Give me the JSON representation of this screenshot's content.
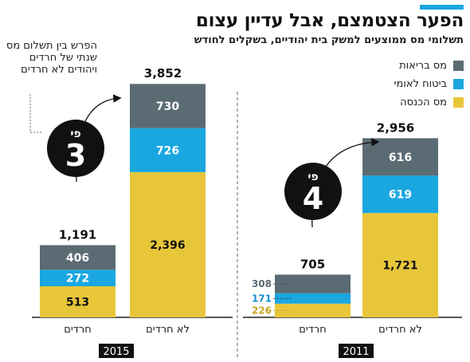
{
  "title": "הפער הצטמצם, אבל עדיין עצום",
  "subtitle": "תשלומי מס ממוצעים למשק בית יהודיים, בשקלים לחודש",
  "legend": [
    {
      "label": "מס בריאות",
      "color": "#5b6b74"
    },
    {
      "label": "ביטוח לאומי",
      "color": "#1aa7e0"
    },
    {
      "label": "מס הכנסה",
      "color": "#e8c63a"
    }
  ],
  "annotation": "הפרש בין תשלום מס שנתי של חרדים ויהודים לא חרדים",
  "colors": {
    "health": "#5b6b74",
    "national": "#1aa7e0",
    "income": "#e8c63a",
    "bubble": "#111111"
  },
  "chart_data": [
    {
      "type": "bar",
      "stacked": true,
      "year_label": "2015",
      "categories": [
        "חרדים",
        "לא חרדים"
      ],
      "series": [
        {
          "name": "מס הכנסה",
          "values": [
            513,
            2396
          ]
        },
        {
          "name": "ביטוח לאומי",
          "values": [
            272,
            726
          ]
        },
        {
          "name": "מס בריאות",
          "values": [
            406,
            730
          ]
        }
      ],
      "totals": [
        "1,191",
        "3,852"
      ],
      "ratio_bubble": {
        "prefix": "פי",
        "value": "3"
      }
    },
    {
      "type": "bar",
      "stacked": true,
      "year_label": "2011",
      "categories": [
        "חרדים",
        "לא חרדים"
      ],
      "series": [
        {
          "name": "מס הכנסה",
          "values": [
            226,
            1721
          ]
        },
        {
          "name": "ביטוח לאומי",
          "values": [
            171,
            619
          ]
        },
        {
          "name": "מס בריאות",
          "values": [
            308,
            616
          ]
        }
      ],
      "totals": [
        "705",
        "2,956"
      ],
      "ratio_bubble": {
        "prefix": "פי",
        "value": "4"
      }
    }
  ]
}
